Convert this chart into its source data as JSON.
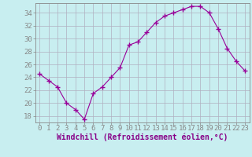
{
  "x": [
    0,
    1,
    2,
    3,
    4,
    5,
    6,
    7,
    8,
    9,
    10,
    11,
    12,
    13,
    14,
    15,
    16,
    17,
    18,
    19,
    20,
    21,
    22,
    23
  ],
  "y": [
    24.5,
    23.5,
    22.5,
    20.0,
    19.0,
    17.5,
    21.5,
    22.5,
    24.0,
    25.5,
    29.0,
    29.5,
    31.0,
    32.5,
    33.5,
    34.0,
    34.5,
    35.0,
    35.0,
    34.0,
    31.5,
    28.5,
    26.5,
    25.0
  ],
  "line_color": "#990099",
  "marker": "+",
  "bg_color": "#c8eef0",
  "grid_color": "#b0b0c0",
  "xlabel": "Windchill (Refroidissement éolien,°C)",
  "xlim": [
    -0.5,
    23.5
  ],
  "ylim": [
    17.0,
    35.5
  ],
  "yticks": [
    18,
    20,
    22,
    24,
    26,
    28,
    30,
    32,
    34
  ],
  "xticks": [
    0,
    1,
    2,
    3,
    4,
    5,
    6,
    7,
    8,
    9,
    10,
    11,
    12,
    13,
    14,
    15,
    16,
    17,
    18,
    19,
    20,
    21,
    22,
    23
  ],
  "tick_fontsize": 6.5,
  "xlabel_fontsize": 7.0,
  "label_color": "#880088"
}
